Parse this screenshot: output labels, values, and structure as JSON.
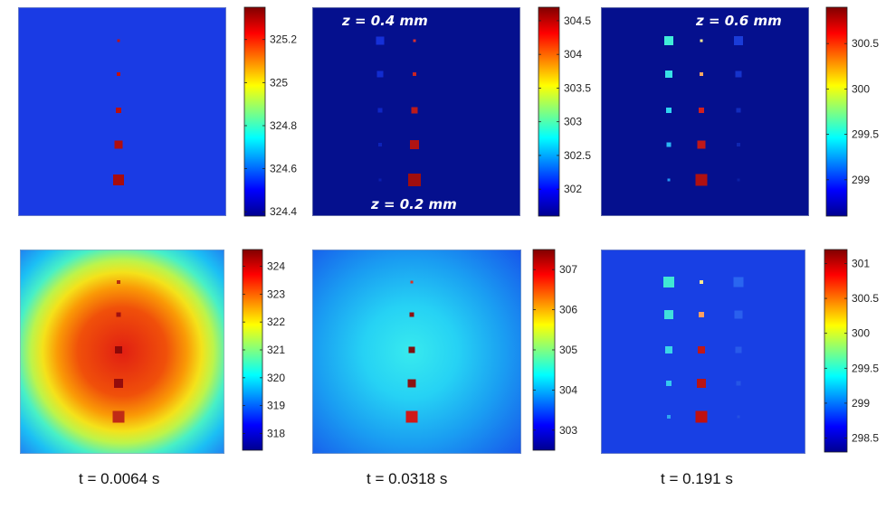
{
  "chart_data": [
    {
      "type": "heatmap",
      "row": "top",
      "column": 1,
      "background_color": "#1a3be4",
      "colorbar": {
        "ticks": [
          325.2,
          325,
          324.8,
          324.6,
          324.4
        ],
        "range": [
          324.38,
          325.35
        ]
      },
      "hotspot_columns": [
        {
          "points": [
            {
              "size": 3,
              "color": "#c01212"
            },
            {
              "size": 4,
              "color": "#c01212"
            },
            {
              "size": 6,
              "color": "#b81010"
            },
            {
              "size": 9,
              "color": "#b00e0e"
            },
            {
              "size": 12,
              "color": "#a80c0c"
            }
          ]
        }
      ]
    },
    {
      "type": "heatmap",
      "row": "top",
      "column": 2,
      "background_color": "#05108e",
      "annotations": [
        {
          "text": "z = 0.4 mm",
          "anchor": "top-left"
        },
        {
          "text": "z = 0.2 mm",
          "anchor": "bottom-center"
        }
      ],
      "colorbar": {
        "ticks": [
          304.5,
          304,
          303.5,
          303,
          302.5,
          302
        ],
        "range": [
          301.6,
          304.7
        ]
      },
      "hotspot_columns": [
        {
          "points": [
            {
              "size": 9,
              "color": "#1530d8"
            },
            {
              "size": 7,
              "color": "#122cd0"
            },
            {
              "size": 5,
              "color": "#0f26c4"
            },
            {
              "size": 4,
              "color": "#0d22b8"
            },
            {
              "size": 3,
              "color": "#0b1eae"
            }
          ]
        },
        {
          "points": [
            {
              "size": 3,
              "color": "#d83030"
            },
            {
              "size": 4,
              "color": "#c82424"
            },
            {
              "size": 7,
              "color": "#bd1a1a"
            },
            {
              "size": 10,
              "color": "#b01414"
            },
            {
              "size": 14,
              "color": "#a00e0e"
            }
          ]
        }
      ]
    },
    {
      "type": "heatmap",
      "row": "top",
      "column": 3,
      "background_color": "#05108e",
      "annotations": [
        {
          "text": "z = 0.6 mm",
          "anchor": "top-right"
        }
      ],
      "colorbar": {
        "ticks": [
          300.5,
          300,
          299.5,
          299
        ],
        "range": [
          298.6,
          300.9
        ]
      },
      "hotspot_columns": [
        {
          "points": [
            {
              "size": 10,
              "color": "#40ecd8"
            },
            {
              "size": 8,
              "color": "#38e0e6"
            },
            {
              "size": 6,
              "color": "#30d4f0"
            },
            {
              "size": 5,
              "color": "#2ab8f4"
            },
            {
              "size": 3,
              "color": "#2496f4"
            }
          ]
        },
        {
          "points": [
            {
              "size": 3,
              "color": "#ffee90"
            },
            {
              "size": 4,
              "color": "#ffa860"
            },
            {
              "size": 6,
              "color": "#d02020"
            },
            {
              "size": 9,
              "color": "#c01818"
            },
            {
              "size": 13,
              "color": "#b01010"
            }
          ]
        },
        {
          "points": [
            {
              "size": 10,
              "color": "#1a3cd8"
            },
            {
              "size": 7,
              "color": "#1634cc"
            },
            {
              "size": 5,
              "color": "#122cbc"
            },
            {
              "size": 4,
              "color": "#0f26b0"
            },
            {
              "size": 3,
              "color": "#0c20a4"
            }
          ]
        }
      ]
    },
    {
      "type": "heatmap",
      "row": "bottom",
      "column": 1,
      "background_gradient": "radial",
      "colorbar": {
        "ticks": [
          324,
          323,
          322,
          321,
          320,
          319,
          318
        ],
        "range": [
          317.4,
          324.6
        ]
      },
      "hotspot_columns": [
        {
          "points": [
            {
              "size": 4,
              "color": "#b83010"
            },
            {
              "size": 5,
              "color": "#a01010"
            },
            {
              "size": 8,
              "color": "#8c0808"
            },
            {
              "size": 10,
              "color": "#940c0c"
            },
            {
              "size": 13,
              "color": "#c02a16"
            }
          ]
        }
      ]
    },
    {
      "type": "heatmap",
      "row": "bottom",
      "column": 2,
      "background_gradient": "radial",
      "colorbar": {
        "ticks": [
          307,
          306,
          305,
          304,
          303
        ],
        "range": [
          302.5,
          307.5
        ]
      },
      "hotspot_columns": [
        {
          "points": [
            {
              "size": 3,
              "color": "#e03020"
            },
            {
              "size": 5,
              "color": "#901010"
            },
            {
              "size": 7,
              "color": "#801010"
            },
            {
              "size": 9,
              "color": "#8c1212"
            },
            {
              "size": 13,
              "color": "#d01818"
            }
          ]
        }
      ]
    },
    {
      "type": "heatmap",
      "row": "bottom",
      "column": 3,
      "background_color": "#1840e4",
      "colorbar": {
        "ticks": [
          301,
          300.5,
          300,
          299.5,
          299,
          298.5
        ],
        "range": [
          298.3,
          301.2
        ]
      },
      "hotspot_columns": [
        {
          "points": [
            {
              "size": 12,
              "color": "#40e8d4"
            },
            {
              "size": 10,
              "color": "#40e0dc"
            },
            {
              "size": 8,
              "color": "#3ad6e6"
            },
            {
              "size": 6,
              "color": "#34c8f0"
            },
            {
              "size": 4,
              "color": "#2ea6f0"
            }
          ]
        },
        {
          "points": [
            {
              "size": 4,
              "color": "#ffe890"
            },
            {
              "size": 6,
              "color": "#ffa060"
            },
            {
              "size": 8,
              "color": "#c01818"
            },
            {
              "size": 10,
              "color": "#b81414"
            },
            {
              "size": 13,
              "color": "#c01010"
            }
          ]
        },
        {
          "points": [
            {
              "size": 11,
              "color": "#2a66f0"
            },
            {
              "size": 9,
              "color": "#2a60ee"
            },
            {
              "size": 7,
              "color": "#285aea"
            },
            {
              "size": 5,
              "color": "#2656e6"
            },
            {
              "size": 3,
              "color": "#2450e2"
            }
          ]
        }
      ]
    }
  ],
  "time_labels": [
    "t = 0.0064 s",
    "t = 0.0318 s",
    "t = 0.191 s"
  ]
}
